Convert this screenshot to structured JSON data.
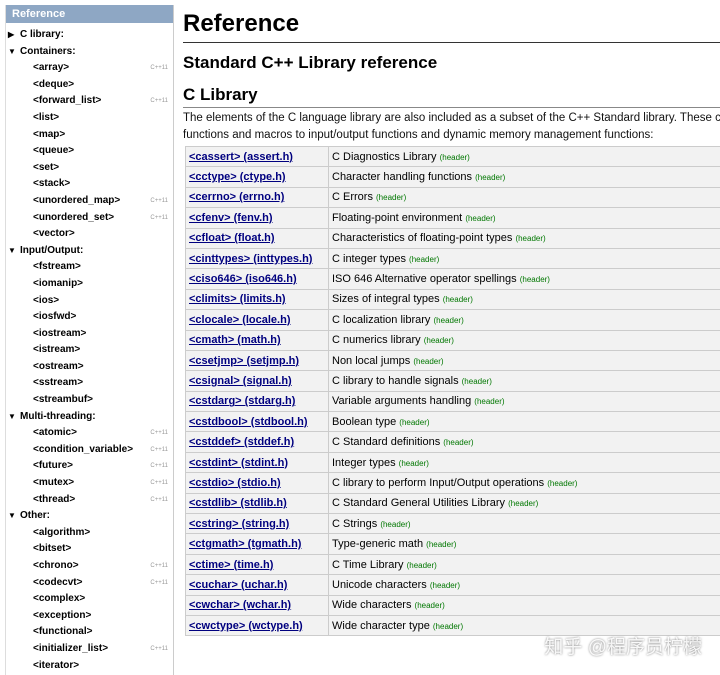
{
  "sidebar": {
    "header": "Reference",
    "groups": [
      {
        "title": "C library:",
        "open": false,
        "items": []
      },
      {
        "title": "Containers:",
        "open": true,
        "items": [
          {
            "label": "<array>",
            "badge": "C++11"
          },
          {
            "label": "<deque>"
          },
          {
            "label": "<forward_list>",
            "badge": "C++11"
          },
          {
            "label": "<list>"
          },
          {
            "label": "<map>"
          },
          {
            "label": "<queue>"
          },
          {
            "label": "<set>"
          },
          {
            "label": "<stack>"
          },
          {
            "label": "<unordered_map>",
            "badge": "C++11"
          },
          {
            "label": "<unordered_set>",
            "badge": "C++11"
          },
          {
            "label": "<vector>"
          }
        ]
      },
      {
        "title": "Input/Output:",
        "open": true,
        "items": [
          {
            "label": "<fstream>"
          },
          {
            "label": "<iomanip>"
          },
          {
            "label": "<ios>"
          },
          {
            "label": "<iosfwd>"
          },
          {
            "label": "<iostream>"
          },
          {
            "label": "<istream>"
          },
          {
            "label": "<ostream>"
          },
          {
            "label": "<sstream>"
          },
          {
            "label": "<streambuf>"
          }
        ]
      },
      {
        "title": "Multi-threading:",
        "open": true,
        "items": [
          {
            "label": "<atomic>",
            "badge": "C++11"
          },
          {
            "label": "<condition_variable>",
            "badge": "C++11"
          },
          {
            "label": "<future>",
            "badge": "C++11"
          },
          {
            "label": "<mutex>",
            "badge": "C++11"
          },
          {
            "label": "<thread>",
            "badge": "C++11"
          }
        ]
      },
      {
        "title": "Other:",
        "open": true,
        "items": [
          {
            "label": "<algorithm>"
          },
          {
            "label": "<bitset>"
          },
          {
            "label": "<chrono>",
            "badge": "C++11"
          },
          {
            "label": "<codecvt>",
            "badge": "C++11"
          },
          {
            "label": "<complex>"
          },
          {
            "label": "<exception>"
          },
          {
            "label": "<functional>"
          },
          {
            "label": "<initializer_list>",
            "badge": "C++11"
          },
          {
            "label": "<iterator>"
          }
        ]
      }
    ]
  },
  "main": {
    "title": "Reference",
    "subtitle": "Standard C++ Library reference",
    "section": "C Library",
    "intro": [
      "The elements of the C language library are also included as a subset of the C++ Standard library. These cover",
      "functions and macros to input/output functions and dynamic memory management functions:"
    ],
    "table": {
      "rows": [
        [
          "<cassert> (assert.h)",
          "C Diagnostics Library",
          "(header)"
        ],
        [
          "<cctype> (ctype.h)",
          "Character handling functions",
          "(header)"
        ],
        [
          "<cerrno> (errno.h)",
          "C Errors",
          "(header)"
        ],
        [
          "<cfenv> (fenv.h)",
          "Floating-point environment",
          "(header)"
        ],
        [
          "<cfloat> (float.h)",
          "Characteristics of floating-point types",
          "(header)"
        ],
        [
          "<cinttypes> (inttypes.h)",
          "C integer types",
          "(header)"
        ],
        [
          "<ciso646> (iso646.h)",
          "ISO 646 Alternative operator spellings",
          "(header)"
        ],
        [
          "<climits> (limits.h)",
          "Sizes of integral types",
          "(header)"
        ],
        [
          "<clocale> (locale.h)",
          "C localization library",
          "(header)"
        ],
        [
          "<cmath> (math.h)",
          "C numerics library",
          "(header)"
        ],
        [
          "<csetjmp> (setjmp.h)",
          "Non local jumps",
          "(header)"
        ],
        [
          "<csignal> (signal.h)",
          "C library to handle signals",
          "(header)"
        ],
        [
          "<cstdarg> (stdarg.h)",
          "Variable arguments handling",
          "(header)"
        ],
        [
          "<cstdbool> (stdbool.h)",
          "Boolean type",
          "(header)"
        ],
        [
          "<cstddef> (stddef.h)",
          "C Standard definitions",
          "(header)"
        ],
        [
          "<cstdint> (stdint.h)",
          "Integer types",
          "(header)"
        ],
        [
          "<cstdio> (stdio.h)",
          "C library to perform Input/Output operations",
          "(header)"
        ],
        [
          "<cstdlib> (stdlib.h)",
          "C Standard General Utilities Library",
          "(header)"
        ],
        [
          "<cstring> (string.h)",
          "C Strings",
          "(header)"
        ],
        [
          "<ctgmath> (tgmath.h)",
          "Type-generic math",
          "(header)"
        ],
        [
          "<ctime> (time.h)",
          "C Time Library",
          "(header)"
        ],
        [
          "<cuchar> (uchar.h)",
          "Unicode characters",
          "(header)"
        ],
        [
          "<cwchar> (wchar.h)",
          "Wide characters",
          "(header)"
        ],
        [
          "<cwctype> (wctype.h)",
          "Wide character type",
          "(header)"
        ]
      ]
    }
  },
  "watermark": "知乎 @程序员柠檬"
}
